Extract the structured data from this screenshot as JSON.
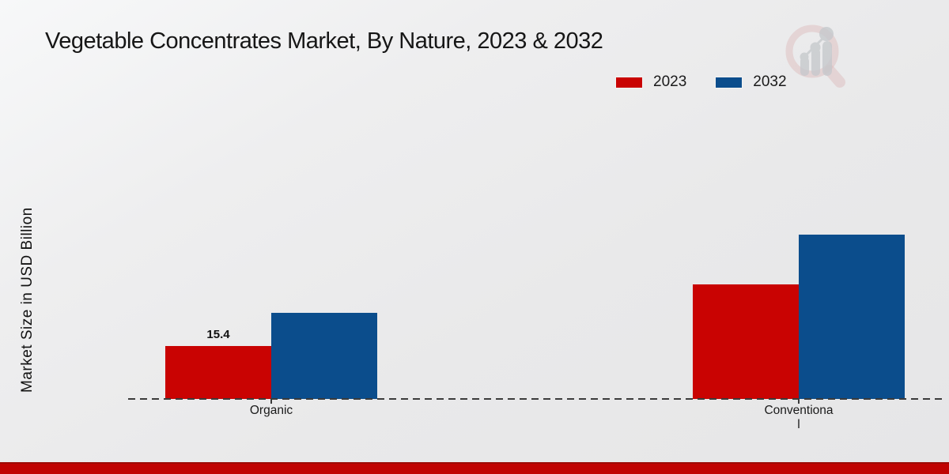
{
  "chart_data": {
    "type": "bar",
    "title": "Vegetable Concentrates Market, By Nature, 2023 & 2032",
    "ylabel": "Market Size in USD Billion",
    "xlabel": "",
    "categories": [
      "Organic",
      "Conventional"
    ],
    "series": [
      {
        "name": "2023",
        "color": "#c90302",
        "values": [
          15.4,
          33.5
        ],
        "value_labels": [
          "15.4",
          ""
        ]
      },
      {
        "name": "2032",
        "color": "#0b4d8c",
        "values": [
          25.2,
          48.1
        ],
        "value_labels": [
          "",
          ""
        ]
      }
    ],
    "ylim": [
      0,
      55
    ],
    "grid": false,
    "legend_position": "top-right",
    "baseline_style": "dashed"
  },
  "x_axis": {
    "display_labels": [
      "Organic",
      "Conventiona\nl"
    ]
  },
  "footer": {
    "bar_color": "#c00302",
    "bar_edge_color": "#9d0b06"
  },
  "watermark": {
    "name": "market-research-logo",
    "magnifier_color": "#cf8f8f",
    "bars_color": "#a8adb3"
  }
}
